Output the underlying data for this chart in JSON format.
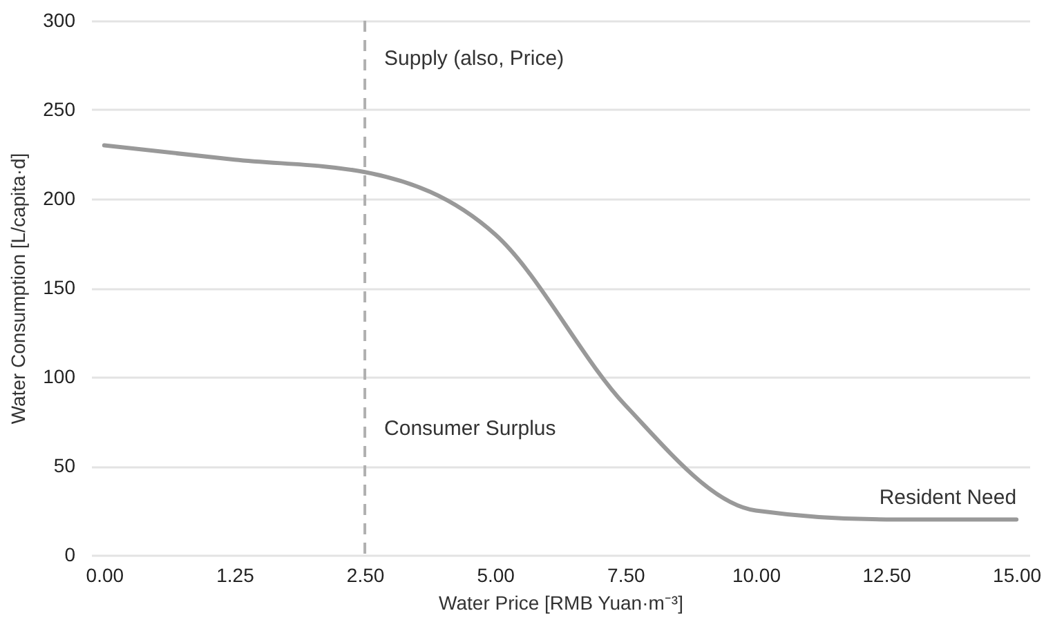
{
  "chart_data": {
    "type": "line",
    "xlabel": "Water Price [RMB Yuan·m⁻³]",
    "ylabel": "Water Consumption [L/capita·d]",
    "categories": [
      "0.00",
      "1.25",
      "2.50",
      "5.00",
      "7.50",
      "10.00",
      "12.50",
      "15.00"
    ],
    "series": [
      {
        "color": "#999999",
        "values": [
          230,
          222,
          215,
          180,
          84,
          25,
          20,
          20
        ]
      }
    ],
    "ylim": [
      0,
      300
    ],
    "yticks": [
      0,
      50,
      100,
      150,
      200,
      250,
      300
    ],
    "grid": "y",
    "marker": "none",
    "line_style": "solid",
    "ref_lines": [
      {
        "axis": "x",
        "value": "2.50",
        "label": "Supply (also, Price)",
        "color": "#b0b0b0",
        "line_style": "dashed"
      }
    ],
    "annotations": [
      {
        "text": "Consumer Surplus",
        "x": "2.50",
        "y": 65
      },
      {
        "text": "Resident Need",
        "x": "15.00",
        "y": 20
      }
    ]
  }
}
